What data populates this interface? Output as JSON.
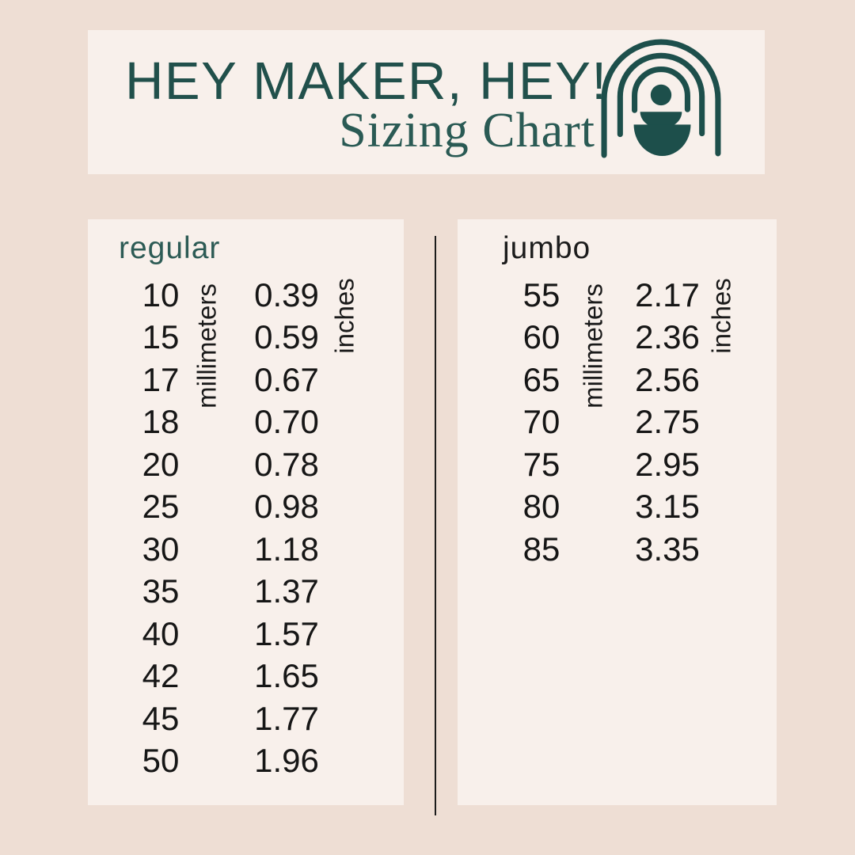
{
  "header": {
    "title": "HEY MAKER, HEY!",
    "subtitle": "Sizing Chart"
  },
  "colors": {
    "background": "#eeded4",
    "panel": "#f8f0eb",
    "teal": "#21504b",
    "subtitle_teal": "#2a5a54",
    "regular_label": "#2d5b55",
    "text_dark": "#161616"
  },
  "panels": [
    {
      "label": "regular",
      "mm_axis": "millimeters",
      "in_axis": "inches",
      "mm": [
        "10",
        "15",
        "17",
        "18",
        "20",
        "25",
        "30",
        "35",
        "40",
        "42",
        "45",
        "50"
      ],
      "inches": [
        "0.39",
        "0.59",
        "0.67",
        "0.70",
        "0.78",
        "0.98",
        "1.18",
        "1.37",
        "1.57",
        "1.65",
        "1.77",
        "1.96"
      ]
    },
    {
      "label": "jumbo",
      "mm_axis": "millimeters",
      "in_axis": "inches",
      "mm": [
        "55",
        "60",
        "65",
        "70",
        "75",
        "80",
        "85"
      ],
      "inches": [
        "2.17",
        "2.36",
        "2.56",
        "2.75",
        "2.95",
        "3.15",
        "3.35"
      ]
    }
  ],
  "chart_data": [
    {
      "type": "table",
      "title": "regular",
      "columns": [
        "millimeters",
        "inches"
      ],
      "rows": [
        [
          10,
          0.39
        ],
        [
          15,
          0.59
        ],
        [
          17,
          0.67
        ],
        [
          18,
          0.7
        ],
        [
          20,
          0.78
        ],
        [
          25,
          0.98
        ],
        [
          30,
          1.18
        ],
        [
          35,
          1.37
        ],
        [
          40,
          1.57
        ],
        [
          42,
          1.65
        ],
        [
          45,
          1.77
        ],
        [
          50,
          1.96
        ]
      ]
    },
    {
      "type": "table",
      "title": "jumbo",
      "columns": [
        "millimeters",
        "inches"
      ],
      "rows": [
        [
          55,
          2.17
        ],
        [
          60,
          2.36
        ],
        [
          65,
          2.56
        ],
        [
          70,
          2.75
        ],
        [
          75,
          2.95
        ],
        [
          80,
          3.15
        ],
        [
          85,
          3.35
        ]
      ]
    }
  ]
}
